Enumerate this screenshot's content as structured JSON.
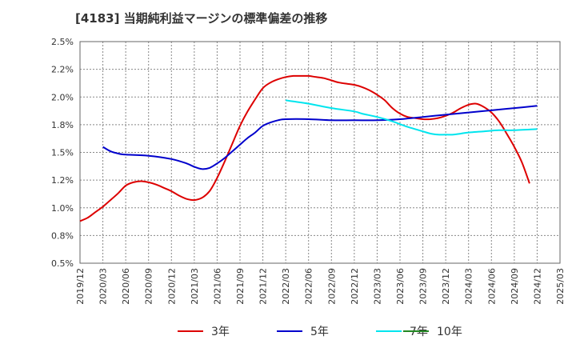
{
  "chart_data": {
    "type": "line",
    "title": "[4183]  当期純利益マージンの標準偏差の推移",
    "xlabel": "",
    "ylabel": "",
    "ylim": [
      0.005,
      0.025
    ],
    "y_ticks": [
      "0.5%",
      "0.8%",
      "1.0%",
      "1.2%",
      "1.5%",
      "1.8%",
      "2.0%",
      "2.2%",
      "2.5%"
    ],
    "x_ticks": [
      "2019/12",
      "2020/03",
      "2020/06",
      "2020/09",
      "2020/12",
      "2021/03",
      "2021/06",
      "2021/09",
      "2021/12",
      "2022/03",
      "2022/06",
      "2022/09",
      "2022/12",
      "2023/03",
      "2023/06",
      "2023/09",
      "2023/12",
      "2024/03",
      "2024/06",
      "2024/09",
      "2024/12",
      "2025/03"
    ],
    "grid": true,
    "legend_position": "bottom",
    "series": [
      {
        "name": "3年",
        "color": "#dd0000",
        "points": [
          [
            "2019/12",
            0.0088
          ],
          [
            "2020/01",
            0.0091
          ],
          [
            "2020/02",
            0.0096
          ],
          [
            "2020/03",
            0.0101
          ],
          [
            "2020/04",
            0.0107
          ],
          [
            "2020/05",
            0.0113
          ],
          [
            "2020/06",
            0.012
          ],
          [
            "2020/07",
            0.0123
          ],
          [
            "2020/08",
            0.0124
          ],
          [
            "2020/09",
            0.0123
          ],
          [
            "2020/10",
            0.0121
          ],
          [
            "2020/11",
            0.0118
          ],
          [
            "2020/12",
            0.0115
          ],
          [
            "2021/01",
            0.0111
          ],
          [
            "2021/02",
            0.0108
          ],
          [
            "2021/03",
            0.0107
          ],
          [
            "2021/04",
            0.0109
          ],
          [
            "2021/05",
            0.0115
          ],
          [
            "2021/06",
            0.0127
          ],
          [
            "2021/07",
            0.0142
          ],
          [
            "2021/08",
            0.0158
          ],
          [
            "2021/09",
            0.0174
          ],
          [
            "2021/10",
            0.0187
          ],
          [
            "2021/11",
            0.0198
          ],
          [
            "2021/12",
            0.0208
          ],
          [
            "2022/01",
            0.0213
          ],
          [
            "2022/02",
            0.0216
          ],
          [
            "2022/03",
            0.0218
          ],
          [
            "2022/04",
            0.0219
          ],
          [
            "2022/05",
            0.0219
          ],
          [
            "2022/06",
            0.0219
          ],
          [
            "2022/07",
            0.0218
          ],
          [
            "2022/08",
            0.0217
          ],
          [
            "2022/09",
            0.0215
          ],
          [
            "2022/10",
            0.0213
          ],
          [
            "2022/11",
            0.0212
          ],
          [
            "2022/12",
            0.0211
          ],
          [
            "2023/01",
            0.0209
          ],
          [
            "2023/02",
            0.0206
          ],
          [
            "2023/03",
            0.0202
          ],
          [
            "2023/04",
            0.0197
          ],
          [
            "2023/05",
            0.019
          ],
          [
            "2023/06",
            0.0185
          ],
          [
            "2023/07",
            0.0182
          ],
          [
            "2023/08",
            0.0181
          ],
          [
            "2023/09",
            0.018
          ],
          [
            "2023/10",
            0.018
          ],
          [
            "2023/11",
            0.0181
          ],
          [
            "2023/12",
            0.0183
          ],
          [
            "2024/01",
            0.0186
          ],
          [
            "2024/02",
            0.019
          ],
          [
            "2024/03",
            0.0193
          ],
          [
            "2024/04",
            0.0194
          ],
          [
            "2024/05",
            0.0191
          ],
          [
            "2024/06",
            0.0186
          ],
          [
            "2024/07",
            0.0178
          ],
          [
            "2024/08",
            0.0167
          ],
          [
            "2024/09",
            0.0155
          ],
          [
            "2024/10",
            0.0141
          ],
          [
            "2024/11",
            0.0122
          ]
        ]
      },
      {
        "name": "5年",
        "color": "#0000cc",
        "points": [
          [
            "2020/03",
            0.0155
          ],
          [
            "2020/04",
            0.0151
          ],
          [
            "2020/05",
            0.0149
          ],
          [
            "2020/06",
            0.0148
          ],
          [
            "2020/09",
            0.0147
          ],
          [
            "2020/12",
            0.0144
          ],
          [
            "2021/02",
            0.014
          ],
          [
            "2021/03",
            0.0137
          ],
          [
            "2021/04",
            0.0135
          ],
          [
            "2021/05",
            0.0136
          ],
          [
            "2021/06",
            0.014
          ],
          [
            "2021/07",
            0.0145
          ],
          [
            "2021/08",
            0.0151
          ],
          [
            "2021/09",
            0.0157
          ],
          [
            "2021/10",
            0.0163
          ],
          [
            "2021/11",
            0.0168
          ],
          [
            "2021/12",
            0.0174
          ],
          [
            "2022/01",
            0.0177
          ],
          [
            "2022/02",
            0.0179
          ],
          [
            "2022/03",
            0.018
          ],
          [
            "2022/06",
            0.018
          ],
          [
            "2022/09",
            0.0179
          ],
          [
            "2022/12",
            0.0179
          ],
          [
            "2023/03",
            0.0179
          ],
          [
            "2023/06",
            0.018
          ],
          [
            "2023/09",
            0.0182
          ],
          [
            "2023/12",
            0.0184
          ],
          [
            "2024/03",
            0.0186
          ],
          [
            "2024/06",
            0.0188
          ],
          [
            "2024/09",
            0.019
          ],
          [
            "2024/12",
            0.0192
          ]
        ]
      },
      {
        "name": "7年",
        "color": "#00e5ee",
        "points": [
          [
            "2022/03",
            0.0197
          ],
          [
            "2022/04",
            0.0196
          ],
          [
            "2022/06",
            0.0194
          ],
          [
            "2022/09",
            0.019
          ],
          [
            "2022/12",
            0.0187
          ],
          [
            "2023/01",
            0.0185
          ],
          [
            "2023/03",
            0.0182
          ],
          [
            "2023/05",
            0.0178
          ],
          [
            "2023/07",
            0.0173
          ],
          [
            "2023/09",
            0.0169
          ],
          [
            "2023/10",
            0.0167
          ],
          [
            "2023/11",
            0.0166
          ],
          [
            "2023/12",
            0.0166
          ],
          [
            "2024/01",
            0.0166
          ],
          [
            "2024/02",
            0.0167
          ],
          [
            "2024/03",
            0.0168
          ],
          [
            "2024/05",
            0.0169
          ],
          [
            "2024/07",
            0.017
          ],
          [
            "2024/09",
            0.017
          ],
          [
            "2024/12",
            0.0171
          ]
        ]
      },
      {
        "name": "10年",
        "color": "#228822",
        "points": []
      }
    ]
  }
}
